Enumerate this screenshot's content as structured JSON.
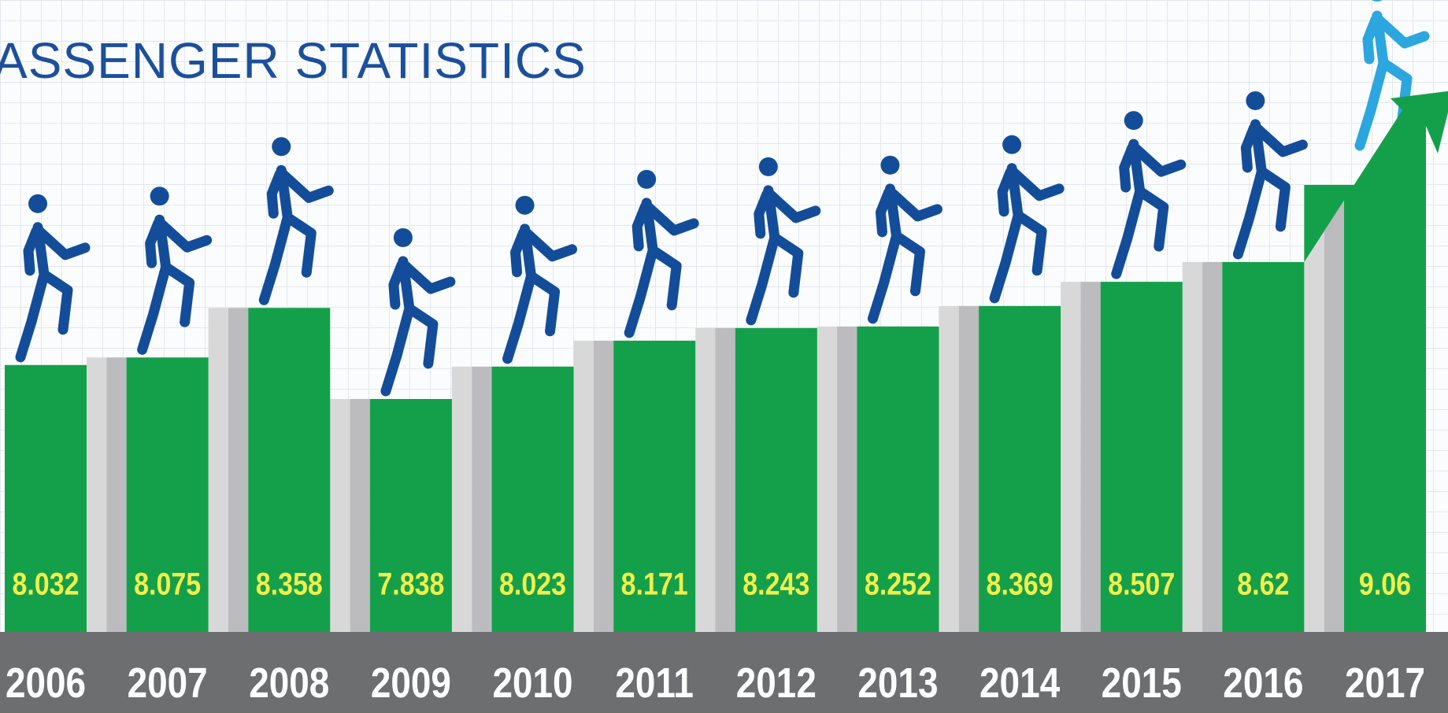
{
  "chart_data": {
    "type": "bar",
    "title": "ASSENGER STATISTICS",
    "categories": [
      "2006",
      "2007",
      "2008",
      "2009",
      "2010",
      "2011",
      "2012",
      "2013",
      "2014",
      "2015",
      "2016",
      "2017"
    ],
    "values": [
      8.032,
      8.075,
      8.358,
      7.838,
      8.023,
      8.171,
      8.243,
      8.252,
      8.369,
      8.507,
      8.62,
      9.06
    ],
    "color": "#14a04a"
  }
}
